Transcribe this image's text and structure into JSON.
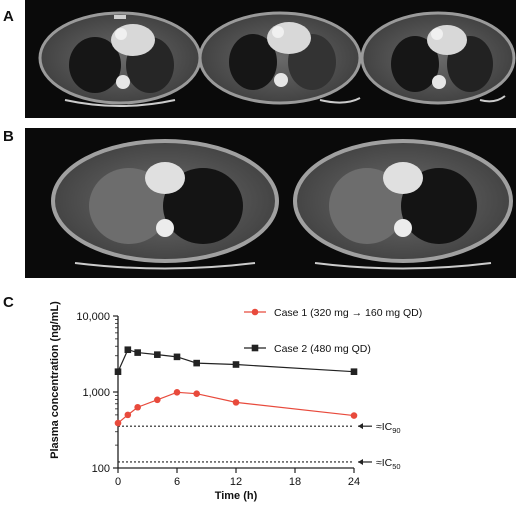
{
  "panels": {
    "a_label": "A",
    "b_label": "B",
    "c_label": "C"
  },
  "chart_data": {
    "type": "line",
    "title": "",
    "xlabel": "Time (h)",
    "ylabel": "Plasma concentration (ng/mL)",
    "yscale": "log",
    "xlim": [
      0,
      24
    ],
    "ylim": [
      100,
      10000
    ],
    "xticks": [
      0,
      6,
      12,
      18,
      24
    ],
    "yticks": [
      100,
      1000,
      10000
    ],
    "ytick_labels": [
      "100",
      "1,000",
      "10,000"
    ],
    "grid": false,
    "legend_position": "top-right",
    "series": [
      {
        "name": "Case 1 (320 mg → 160 mg QD)",
        "color": "#e84a3c",
        "marker": "circle",
        "x": [
          0,
          1,
          2,
          4,
          6,
          8,
          12,
          24
        ],
        "y": [
          390,
          500,
          630,
          790,
          990,
          950,
          730,
          490
        ]
      },
      {
        "name": "Case 2 (480 mg QD)",
        "color": "#222222",
        "marker": "square",
        "x": [
          0,
          1,
          2,
          4,
          6,
          8,
          12,
          24
        ],
        "y": [
          1850,
          3600,
          3300,
          3100,
          2900,
          2400,
          2300,
          1850
        ]
      }
    ],
    "reference_lines": [
      {
        "label": "≈IC90",
        "y": 355
      },
      {
        "label": "≈IC50",
        "y": 120
      }
    ]
  }
}
